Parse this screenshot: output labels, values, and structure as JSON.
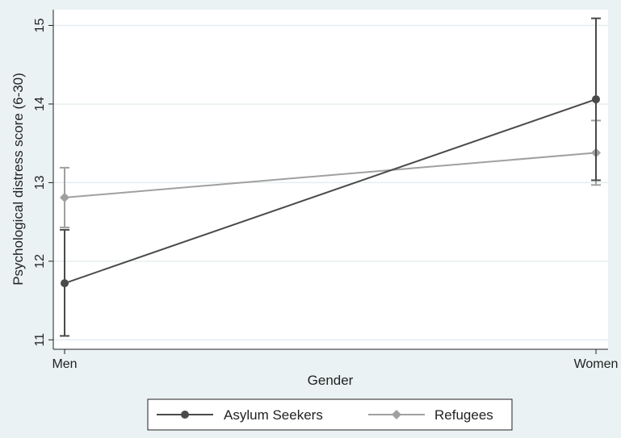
{
  "chart_data": {
    "type": "line",
    "categories": [
      "Men",
      "Women"
    ],
    "xlabel": "Gender",
    "ylabel": "Psychological distress score (6-30)",
    "ylim": [
      10.88,
      15.2
    ],
    "yticks": [
      11,
      12,
      13,
      14,
      15
    ],
    "grid": true,
    "legend_position": "bottom",
    "series": [
      {
        "name": "Asylum Seekers",
        "values": [
          11.72,
          14.06
        ],
        "ci_low": [
          11.05,
          13.03
        ],
        "ci_high": [
          12.4,
          15.09
        ],
        "marker": "circle",
        "color": "#4a4a4a"
      },
      {
        "name": "Refugees",
        "values": [
          12.81,
          13.38
        ],
        "ci_low": [
          12.43,
          12.97
        ],
        "ci_high": [
          13.19,
          13.79
        ],
        "marker": "diamond",
        "color": "#a0a0a0"
      }
    ]
  }
}
